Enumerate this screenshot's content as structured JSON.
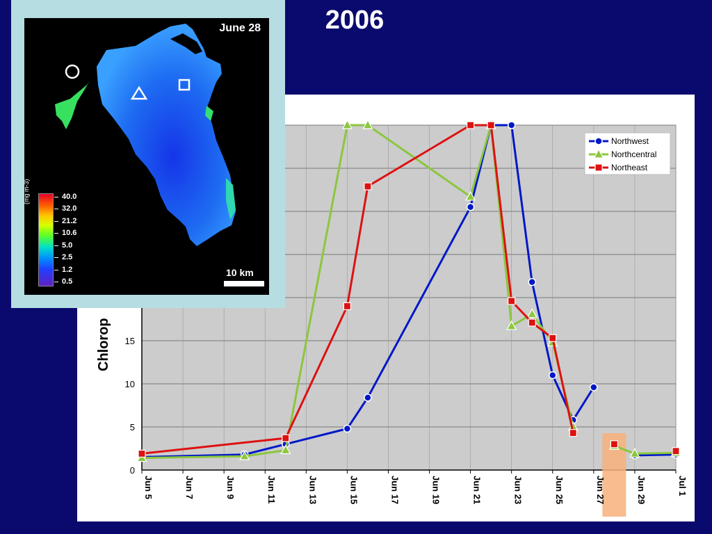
{
  "slide_title": "2006",
  "map": {
    "date_label": "June 28",
    "scale_label": "10 km",
    "legend_units": "(mg m-3)",
    "legend_values": [
      "40.0",
      "32.0",
      "21.2",
      "10.6",
      "5.0",
      "2.5",
      "1.2",
      "0.5"
    ],
    "markers": [
      "circle",
      "triangle",
      "square"
    ]
  },
  "chart_data": {
    "type": "line",
    "ylabel": "Chlorop",
    "y_tick_labels": [
      "0",
      "5",
      "10",
      "15"
    ],
    "ylim": [
      0,
      40
    ],
    "xlim": [
      "2006-06-05",
      "2006-07-01"
    ],
    "x_tick_labels": [
      "Jun 5",
      "Jun 7",
      "Jun 9",
      "Jun 11",
      "Jun 13",
      "Jun 15",
      "Jun 17",
      "Jun 19",
      "Jun 21",
      "Jun 23",
      "Jun 25",
      "Jun 27",
      "Jun 29",
      "Jul 1"
    ],
    "grid": true,
    "legend_position": "top-right",
    "series": [
      {
        "name": "Northwest",
        "color": "#0018c8",
        "marker": "circle",
        "points": [
          [
            "2006-06-05",
            1.5
          ],
          [
            "2006-06-10",
            1.8
          ],
          [
            "2006-06-12",
            3.0
          ],
          [
            "2006-06-15",
            4.8
          ],
          [
            "2006-06-16",
            8.4
          ],
          [
            "2006-06-21",
            30.5
          ],
          [
            "2006-06-22",
            40.0
          ],
          [
            "2006-06-23",
            40.0
          ],
          [
            "2006-06-24",
            21.8
          ],
          [
            "2006-06-25",
            11.0
          ],
          [
            "2006-06-26",
            5.8
          ],
          [
            "2006-06-27",
            9.6
          ],
          null,
          [
            "2006-06-29",
            1.7
          ],
          [
            "2006-07-01",
            1.8
          ]
        ]
      },
      {
        "name": "Northcentral",
        "color": "#8cc63f",
        "marker": "triangle",
        "points": [
          [
            "2006-06-05",
            1.4
          ],
          [
            "2006-06-10",
            1.6
          ],
          [
            "2006-06-12",
            2.3
          ],
          [
            "2006-06-15",
            40.0
          ],
          [
            "2006-06-16",
            40.0
          ],
          [
            "2006-06-21",
            31.7
          ],
          [
            "2006-06-22",
            40.0
          ],
          [
            "2006-06-23",
            16.7
          ],
          [
            "2006-06-24",
            18.1
          ],
          [
            "2006-06-25",
            14.8
          ],
          [
            "2006-06-26",
            5.0
          ],
          null,
          [
            "2006-06-28",
            2.8
          ],
          [
            "2006-06-29",
            1.9
          ],
          [
            "2006-07-01",
            2.0
          ]
        ]
      },
      {
        "name": "Northeast",
        "color": "#dd1111",
        "marker": "square",
        "points": [
          [
            "2006-06-05",
            1.9
          ],
          [
            "2006-06-12",
            3.7
          ],
          [
            "2006-06-15",
            19.0
          ],
          [
            "2006-06-16",
            32.9
          ],
          [
            "2006-06-21",
            40.0
          ],
          [
            "2006-06-22",
            40.0
          ],
          [
            "2006-06-23",
            19.6
          ],
          [
            "2006-06-24",
            17.1
          ],
          [
            "2006-06-25",
            15.3
          ],
          [
            "2006-06-26",
            4.3
          ],
          null,
          [
            "2006-06-28",
            3.0
          ],
          null,
          [
            "2006-07-01",
            2.2
          ]
        ]
      }
    ],
    "highlight_date": "2006-06-28",
    "highlight_color": "#f7b07a"
  }
}
